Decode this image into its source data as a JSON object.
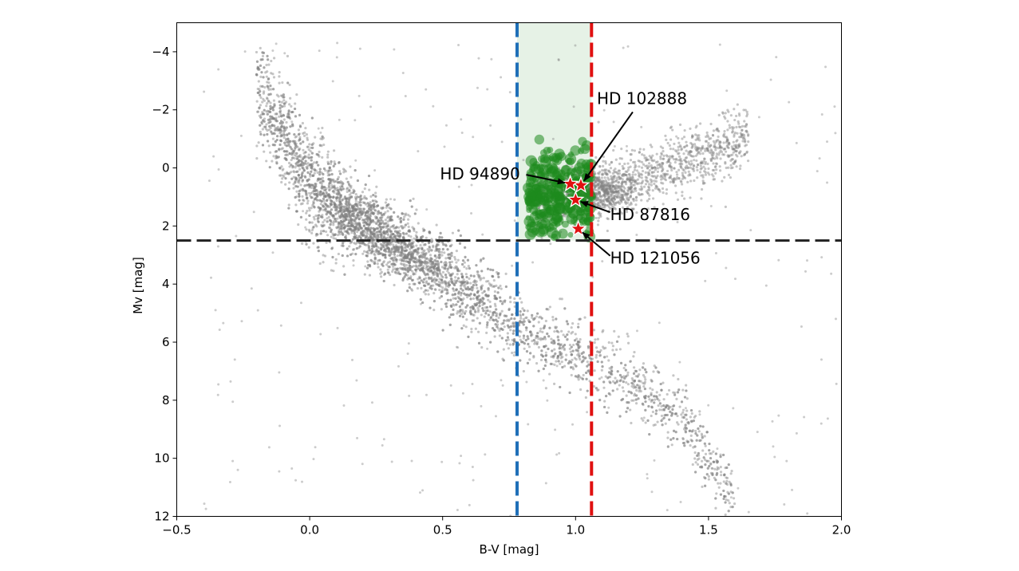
{
  "chart_data": {
    "type": "scatter",
    "xlabel": "B-V [mag]",
    "ylabel": "Mv [mag]",
    "xlim": [
      -0.5,
      2.0
    ],
    "ylim": [
      12,
      -5
    ],
    "y_inverted": true,
    "grid": false,
    "x_ticks": [
      -0.5,
      0.0,
      0.5,
      1.0,
      1.5,
      2.0
    ],
    "x_tick_labels": [
      "−0.5",
      "0.0",
      "0.5",
      "1.0",
      "1.5",
      "2.0"
    ],
    "y_ticks": [
      -4,
      -2,
      0,
      2,
      4,
      6,
      8,
      10,
      12
    ],
    "y_tick_labels": [
      "−4",
      "−2",
      "0",
      "2",
      "4",
      "6",
      "8",
      "10",
      "12"
    ],
    "reference_lines": [
      {
        "orientation": "vertical",
        "x": 0.78,
        "color": "#1f6fb8",
        "style": "dashed"
      },
      {
        "orientation": "vertical",
        "x": 1.06,
        "color": "#e01010",
        "style": "dashed"
      },
      {
        "orientation": "horizontal",
        "y": 2.5,
        "color": "#222222",
        "style": "dashed"
      }
    ],
    "shaded_region": {
      "x": [
        0.78,
        1.06
      ],
      "y": [
        -5,
        2.5
      ],
      "color": "#e6f2e6"
    },
    "background_distribution": {
      "color": "#808080",
      "main_sequence_ridge": [
        [
          -0.2,
          -2.8
        ],
        [
          0.0,
          0.6
        ],
        [
          0.2,
          2.0
        ],
        [
          0.4,
          3.0
        ],
        [
          0.6,
          4.2
        ],
        [
          0.8,
          5.6
        ],
        [
          1.0,
          6.4
        ],
        [
          1.2,
          7.3
        ],
        [
          1.4,
          8.6
        ],
        [
          1.5,
          10.0
        ],
        [
          1.6,
          11.5
        ]
      ],
      "giant_branch": [
        [
          0.85,
          1.2
        ],
        [
          1.1,
          0.8
        ],
        [
          1.3,
          0.2
        ],
        [
          1.5,
          -0.5
        ],
        [
          1.65,
          -1.2
        ]
      ]
    },
    "selected_stars": {
      "color": "#1e8a1e",
      "x_range": [
        0.82,
        1.06
      ],
      "y_range": [
        -1.2,
        2.5
      ]
    },
    "highlighted_stars": [
      {
        "name": "HD 102888",
        "x": 1.02,
        "y": 0.6
      },
      {
        "name": "HD 94890",
        "x": 0.98,
        "y": 0.55
      },
      {
        "name": "HD 87816",
        "x": 1.0,
        "y": 1.1
      },
      {
        "name": "HD 121056",
        "x": 1.01,
        "y": 2.1
      }
    ],
    "annotations": [
      {
        "text": "HD 102888",
        "target": "HD 102888",
        "text_x": 1.08,
        "text_y": -2.2
      },
      {
        "text": "HD 94890",
        "target": "HD 94890",
        "text_x": 0.49,
        "text_y": 0.4
      },
      {
        "text": "HD 87816",
        "target": "HD 87816",
        "text_x": 1.13,
        "text_y": 1.8
      },
      {
        "text": "HD 121056",
        "target": "HD 121056",
        "text_x": 1.13,
        "text_y": 3.3
      }
    ]
  }
}
